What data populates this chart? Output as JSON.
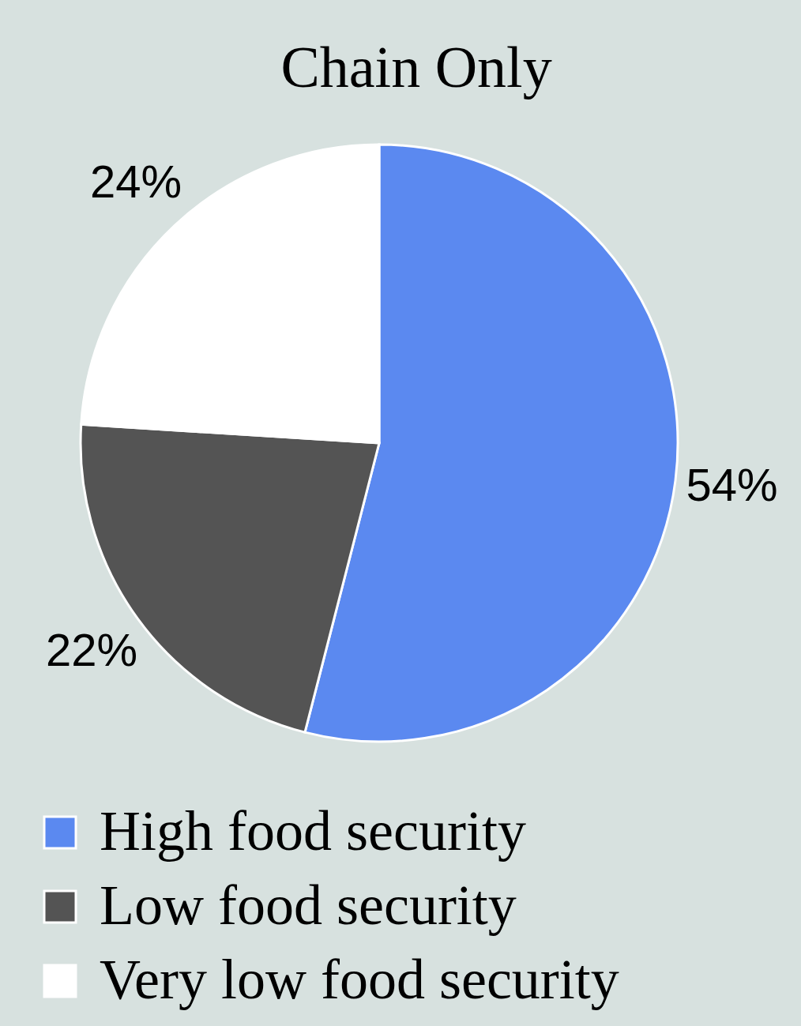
{
  "chart_data": {
    "type": "pie",
    "title": "Chain Only",
    "categories": [
      "High food security",
      "Low food security",
      "Very low food security"
    ],
    "values": [
      54,
      22,
      24
    ],
    "colors": [
      "#5b89f0",
      "#545454",
      "#ffffff"
    ],
    "value_labels": [
      "54%",
      "22%",
      "24%"
    ],
    "legend": "bottom left"
  }
}
